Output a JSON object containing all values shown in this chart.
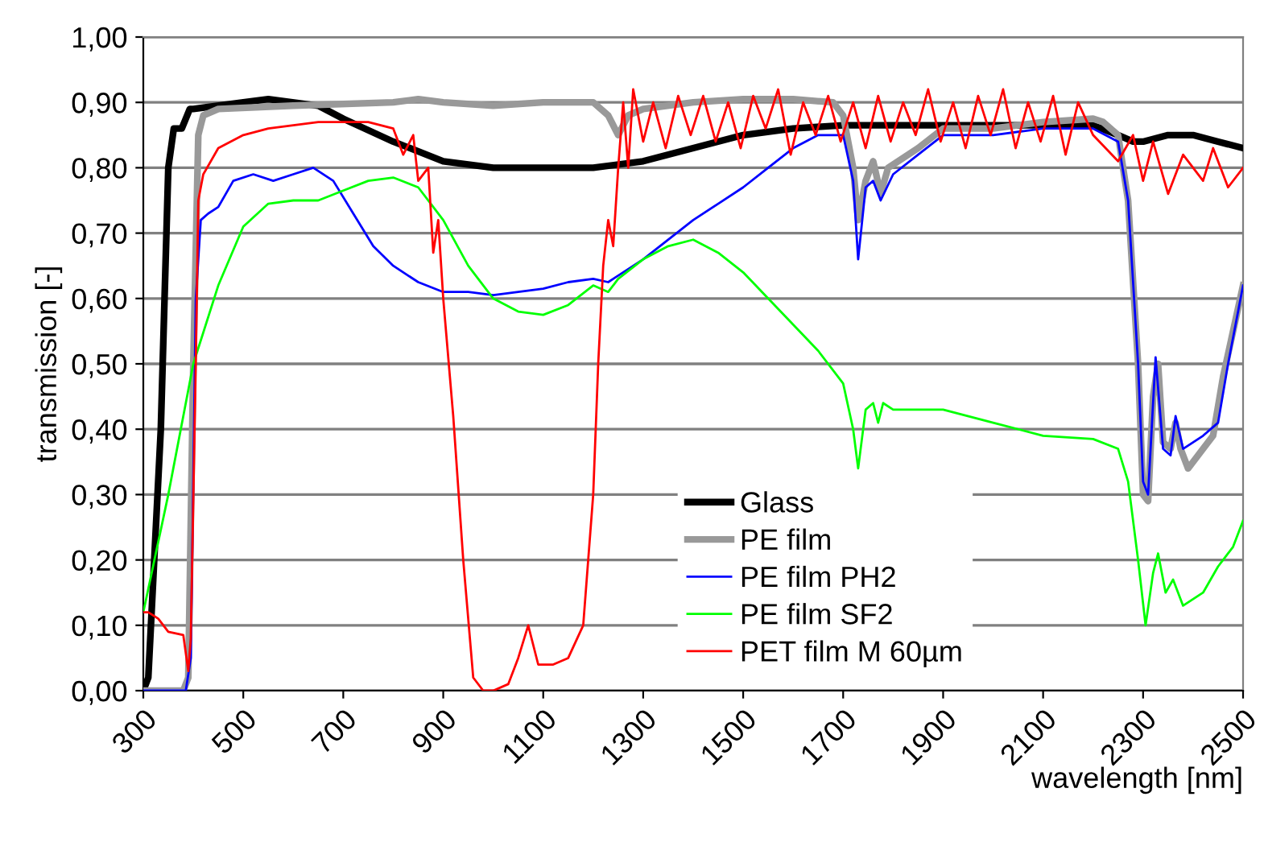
{
  "chart_data": {
    "type": "line",
    "xlabel": "wavelength [nm]",
    "ylabel": "transmission [-]",
    "xlim": [
      300,
      2500
    ],
    "xticks": [
      300,
      500,
      700,
      900,
      1100,
      1300,
      1500,
      1700,
      1900,
      2100,
      2300,
      2500
    ],
    "ylim": [
      0,
      1
    ],
    "yticks": [
      {
        "value": 0,
        "label": "0,00"
      },
      {
        "value": 0.1,
        "label": "0,10"
      },
      {
        "value": 0.2,
        "label": "0,20"
      },
      {
        "value": 0.3,
        "label": "0,30"
      },
      {
        "value": 0.4,
        "label": "0,40"
      },
      {
        "value": 0.5,
        "label": "0,50"
      },
      {
        "value": 0.6,
        "label": "0,60"
      },
      {
        "value": 0.7,
        "label": "0,70"
      },
      {
        "value": 0.8,
        "label": "0,80"
      },
      {
        "value": 0.9,
        "label": "0,90"
      },
      {
        "value": 1,
        "label": "1,00"
      }
    ],
    "grid": "y",
    "legend": "bottom",
    "marker": "none",
    "line_style": "solid",
    "series": [
      {
        "name": "Glass",
        "color": "#000000",
        "x": [
          300,
          310,
          335,
          350,
          361,
          377,
          393,
          400,
          500,
          550,
          650,
          700,
          800,
          900,
          1000,
          1100,
          1200,
          1300,
          1400,
          1500,
          1600,
          1700,
          1800,
          1900,
          2000,
          2100,
          2200,
          2250,
          2280,
          2300,
          2350,
          2400,
          2450,
          2500
        ],
        "values": [
          0.0,
          0.02,
          0.4,
          0.8,
          0.86,
          0.86,
          0.89,
          0.89,
          0.9,
          0.905,
          0.895,
          0.875,
          0.84,
          0.81,
          0.8,
          0.8,
          0.8,
          0.81,
          0.83,
          0.85,
          0.86,
          0.865,
          0.865,
          0.865,
          0.865,
          0.865,
          0.865,
          0.85,
          0.84,
          0.84,
          0.85,
          0.85,
          0.84,
          0.83
        ]
      },
      {
        "name": "PE film",
        "color": "#999999",
        "x": [
          300,
          380,
          390,
          400,
          410,
          420,
          450,
          600,
          800,
          850,
          900,
          1000,
          1100,
          1200,
          1230,
          1250,
          1270,
          1300,
          1400,
          1500,
          1600,
          1680,
          1700,
          1720,
          1730,
          1745,
          1760,
          1775,
          1790,
          1850,
          1900,
          2000,
          2100,
          2200,
          2220,
          2250,
          2270,
          2290,
          2300,
          2310,
          2320,
          2330,
          2340,
          2355,
          2365,
          2375,
          2390,
          2420,
          2440,
          2460,
          2480,
          2500
        ],
        "values": [
          0.0,
          0.0,
          0.02,
          0.5,
          0.85,
          0.88,
          0.89,
          0.895,
          0.9,
          0.905,
          0.9,
          0.895,
          0.9,
          0.9,
          0.88,
          0.85,
          0.88,
          0.89,
          0.9,
          0.905,
          0.905,
          0.9,
          0.88,
          0.8,
          0.72,
          0.78,
          0.81,
          0.76,
          0.8,
          0.83,
          0.86,
          0.86,
          0.87,
          0.875,
          0.87,
          0.85,
          0.75,
          0.5,
          0.3,
          0.29,
          0.45,
          0.5,
          0.38,
          0.37,
          0.41,
          0.37,
          0.34,
          0.37,
          0.39,
          0.48,
          0.55,
          0.62
        ]
      },
      {
        "name": "PE film PH2",
        "color": "#0000ff",
        "x": [
          300,
          385,
          395,
          405,
          415,
          430,
          450,
          480,
          520,
          560,
          600,
          640,
          680,
          720,
          760,
          800,
          850,
          900,
          950,
          1000,
          1050,
          1100,
          1150,
          1200,
          1230,
          1250,
          1300,
          1400,
          1450,
          1500,
          1550,
          1600,
          1650,
          1700,
          1720,
          1730,
          1745,
          1760,
          1775,
          1800,
          1850,
          1900,
          2000,
          2100,
          2200,
          2250,
          2270,
          2290,
          2300,
          2310,
          2325,
          2340,
          2355,
          2365,
          2380,
          2420,
          2450,
          2470,
          2500
        ],
        "values": [
          0.0,
          0.0,
          0.05,
          0.6,
          0.72,
          0.73,
          0.74,
          0.78,
          0.79,
          0.78,
          0.79,
          0.8,
          0.78,
          0.73,
          0.68,
          0.65,
          0.625,
          0.61,
          0.61,
          0.605,
          0.61,
          0.615,
          0.625,
          0.63,
          0.625,
          0.635,
          0.66,
          0.72,
          0.745,
          0.77,
          0.8,
          0.83,
          0.85,
          0.85,
          0.78,
          0.66,
          0.77,
          0.78,
          0.75,
          0.79,
          0.82,
          0.85,
          0.85,
          0.86,
          0.86,
          0.84,
          0.75,
          0.5,
          0.32,
          0.3,
          0.51,
          0.37,
          0.36,
          0.42,
          0.37,
          0.39,
          0.41,
          0.5,
          0.62
        ]
      },
      {
        "name": "PE film SF2",
        "color": "#00ff00",
        "x": [
          300,
          350,
          400,
          450,
          500,
          550,
          600,
          650,
          700,
          750,
          800,
          850,
          900,
          950,
          1000,
          1050,
          1100,
          1150,
          1200,
          1230,
          1250,
          1300,
          1350,
          1400,
          1450,
          1500,
          1550,
          1600,
          1650,
          1700,
          1720,
          1730,
          1745,
          1760,
          1770,
          1780,
          1800,
          1900,
          2000,
          2100,
          2200,
          2250,
          2270,
          2290,
          2305,
          2320,
          2330,
          2345,
          2360,
          2380,
          2420,
          2450,
          2480,
          2500
        ],
        "values": [
          0.12,
          0.3,
          0.5,
          0.62,
          0.71,
          0.745,
          0.75,
          0.75,
          0.765,
          0.78,
          0.785,
          0.77,
          0.72,
          0.65,
          0.6,
          0.58,
          0.575,
          0.59,
          0.62,
          0.61,
          0.63,
          0.66,
          0.68,
          0.69,
          0.67,
          0.64,
          0.6,
          0.56,
          0.52,
          0.47,
          0.4,
          0.34,
          0.43,
          0.44,
          0.41,
          0.44,
          0.43,
          0.43,
          0.41,
          0.39,
          0.385,
          0.37,
          0.32,
          0.2,
          0.1,
          0.18,
          0.21,
          0.15,
          0.17,
          0.13,
          0.15,
          0.19,
          0.22,
          0.26
        ]
      },
      {
        "name": "PET film M 60µm",
        "color": "#ff0000",
        "x": [
          300,
          310,
          330,
          350,
          380,
          390,
          395,
          405,
          410,
          420,
          450,
          500,
          550,
          600,
          650,
          700,
          750,
          800,
          820,
          840,
          850,
          870,
          880,
          890,
          900,
          920,
          940,
          960,
          980,
          1000,
          1030,
          1050,
          1070,
          1090,
          1120,
          1150,
          1180,
          1200,
          1210,
          1220,
          1230,
          1240,
          1250,
          1260,
          1270,
          1280,
          1300,
          1320,
          1345,
          1370,
          1395,
          1420,
          1445,
          1470,
          1495,
          1520,
          1545,
          1570,
          1595,
          1620,
          1645,
          1670,
          1695,
          1720,
          1745,
          1770,
          1795,
          1820,
          1845,
          1870,
          1895,
          1920,
          1945,
          1970,
          1995,
          2020,
          2045,
          2070,
          2095,
          2120,
          2145,
          2170,
          2200,
          2250,
          2280,
          2300,
          2320,
          2350,
          2380,
          2420,
          2440,
          2470,
          2500
        ],
        "values": [
          0.12,
          0.12,
          0.11,
          0.09,
          0.085,
          0.03,
          0.08,
          0.5,
          0.75,
          0.79,
          0.83,
          0.85,
          0.86,
          0.865,
          0.87,
          0.87,
          0.87,
          0.86,
          0.82,
          0.85,
          0.78,
          0.8,
          0.67,
          0.72,
          0.6,
          0.42,
          0.2,
          0.02,
          0.0,
          0.0,
          0.01,
          0.05,
          0.1,
          0.04,
          0.04,
          0.05,
          0.1,
          0.3,
          0.5,
          0.65,
          0.72,
          0.68,
          0.8,
          0.9,
          0.8,
          0.92,
          0.84,
          0.9,
          0.83,
          0.91,
          0.85,
          0.91,
          0.84,
          0.9,
          0.83,
          0.91,
          0.86,
          0.92,
          0.82,
          0.9,
          0.85,
          0.91,
          0.84,
          0.9,
          0.83,
          0.91,
          0.84,
          0.9,
          0.85,
          0.92,
          0.84,
          0.9,
          0.83,
          0.91,
          0.85,
          0.92,
          0.83,
          0.9,
          0.84,
          0.91,
          0.82,
          0.9,
          0.85,
          0.81,
          0.85,
          0.78,
          0.84,
          0.76,
          0.82,
          0.78,
          0.83,
          0.77,
          0.8
        ]
      }
    ]
  }
}
